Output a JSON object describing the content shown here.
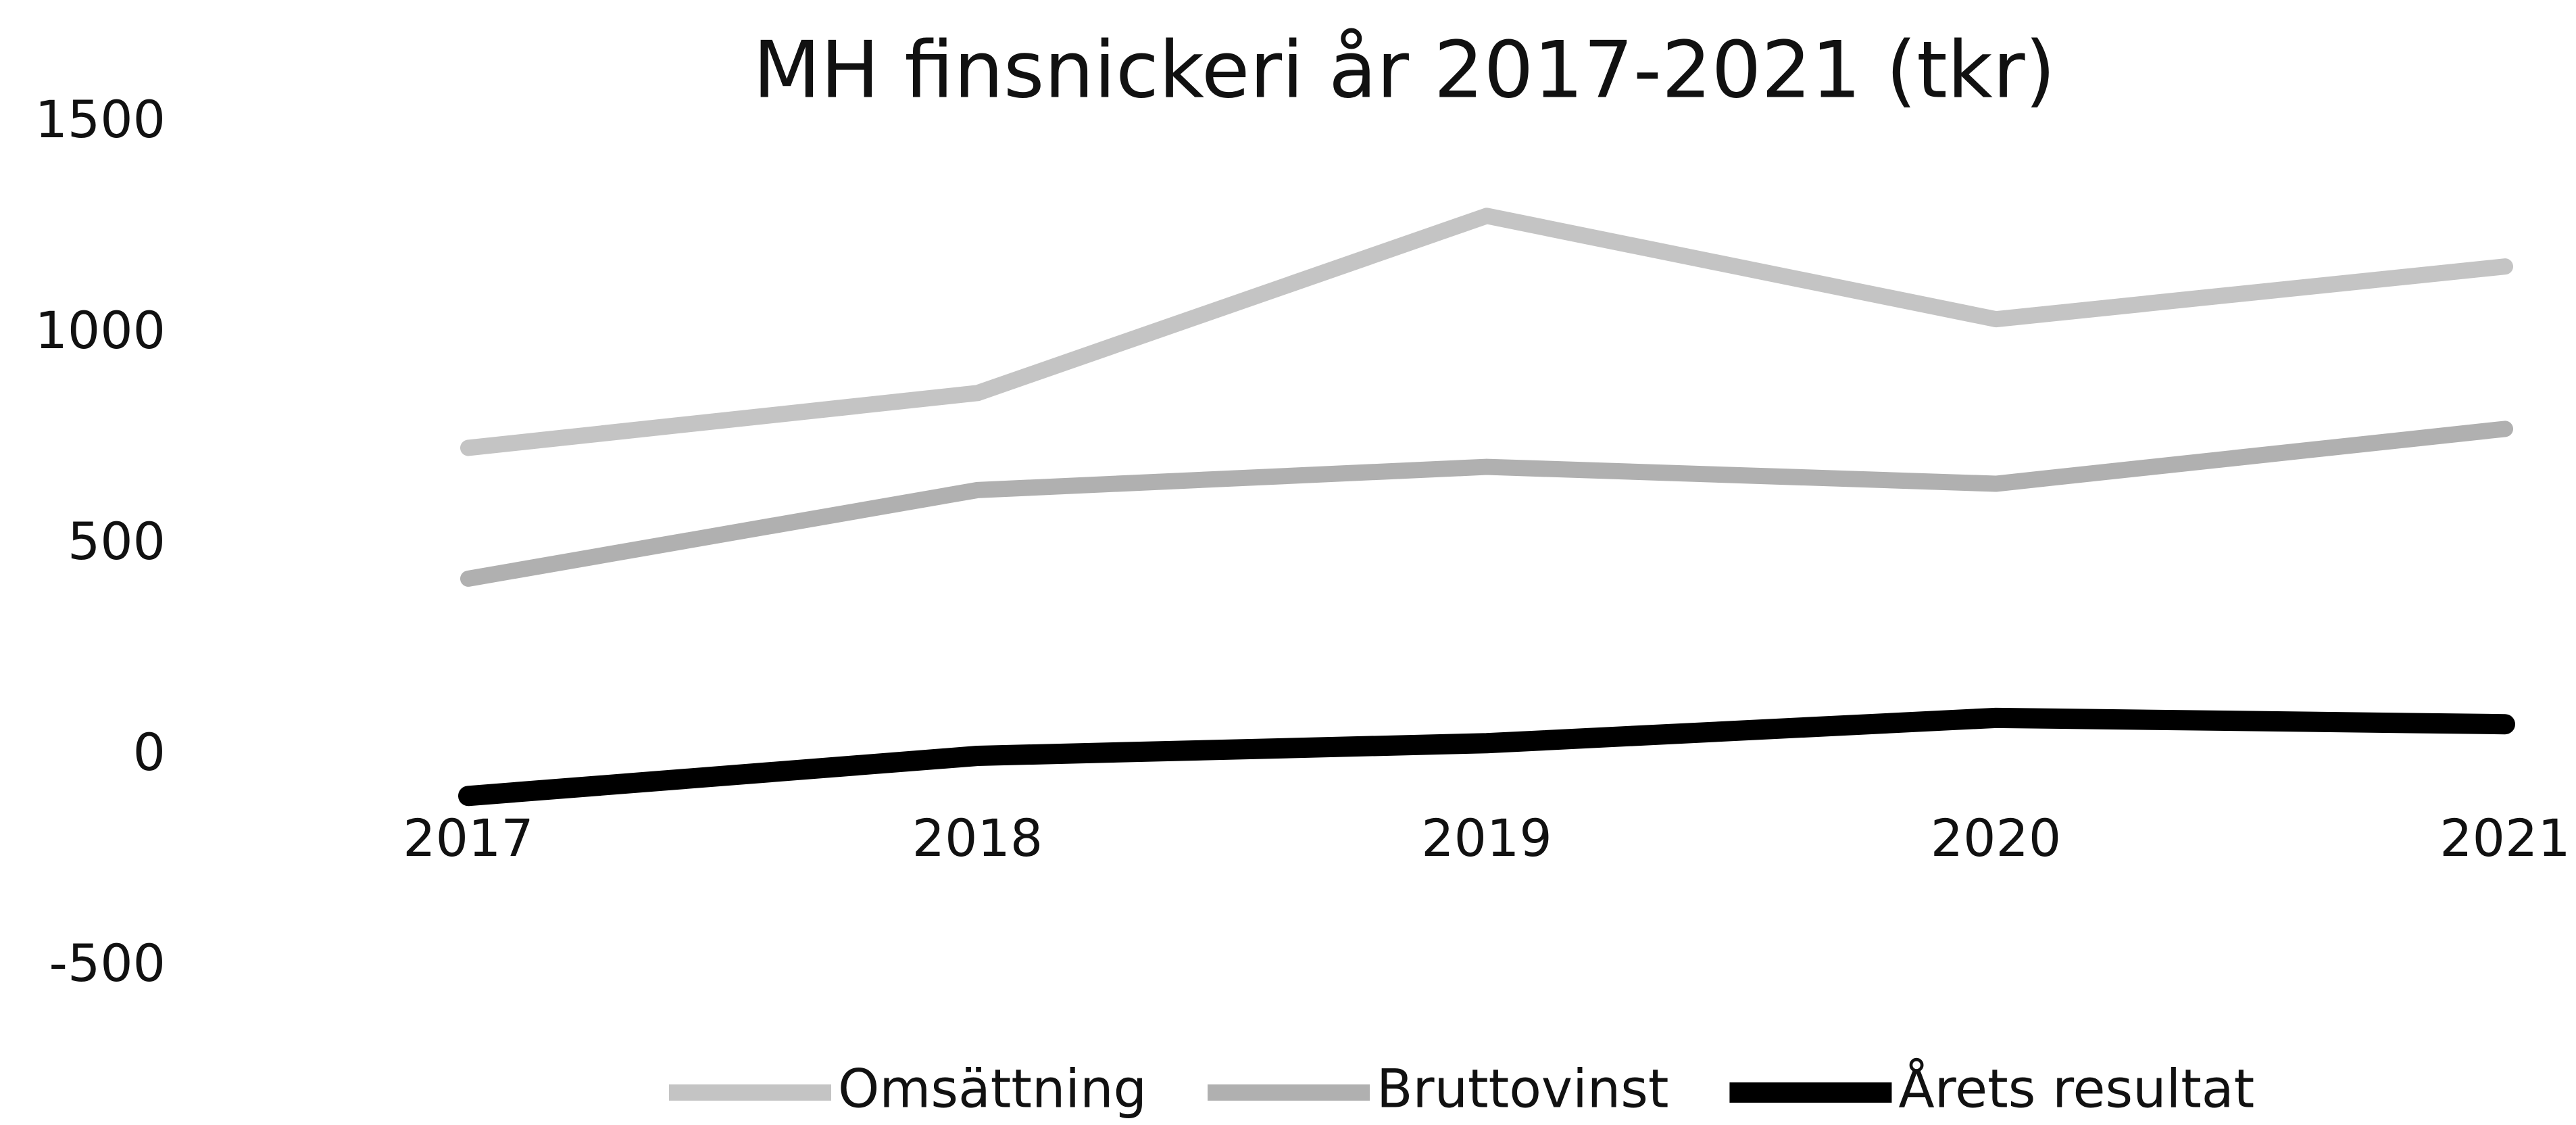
{
  "chart_data": {
    "type": "line",
    "title": "MH finsnickeri år 2017-2021 (tkr)",
    "categories": [
      "2017",
      "2018",
      "2019",
      "2020",
      "2021"
    ],
    "series": [
      {
        "name": "Omsättning",
        "color": "#c4c4c4",
        "values": [
          730,
          860,
          1280,
          1035,
          1160
        ]
      },
      {
        "name": "Bruttovinst",
        "color": "#b0b0b0",
        "values": [
          420,
          630,
          685,
          645,
          775
        ]
      },
      {
        "name": "Årets resultat",
        "color": "#000000",
        "values": [
          -95,
          0,
          30,
          90,
          75
        ]
      }
    ],
    "ylim": [
      -500,
      1500
    ],
    "yticks": [
      -500,
      0,
      500,
      1000,
      1500
    ],
    "legend": "bottom"
  }
}
